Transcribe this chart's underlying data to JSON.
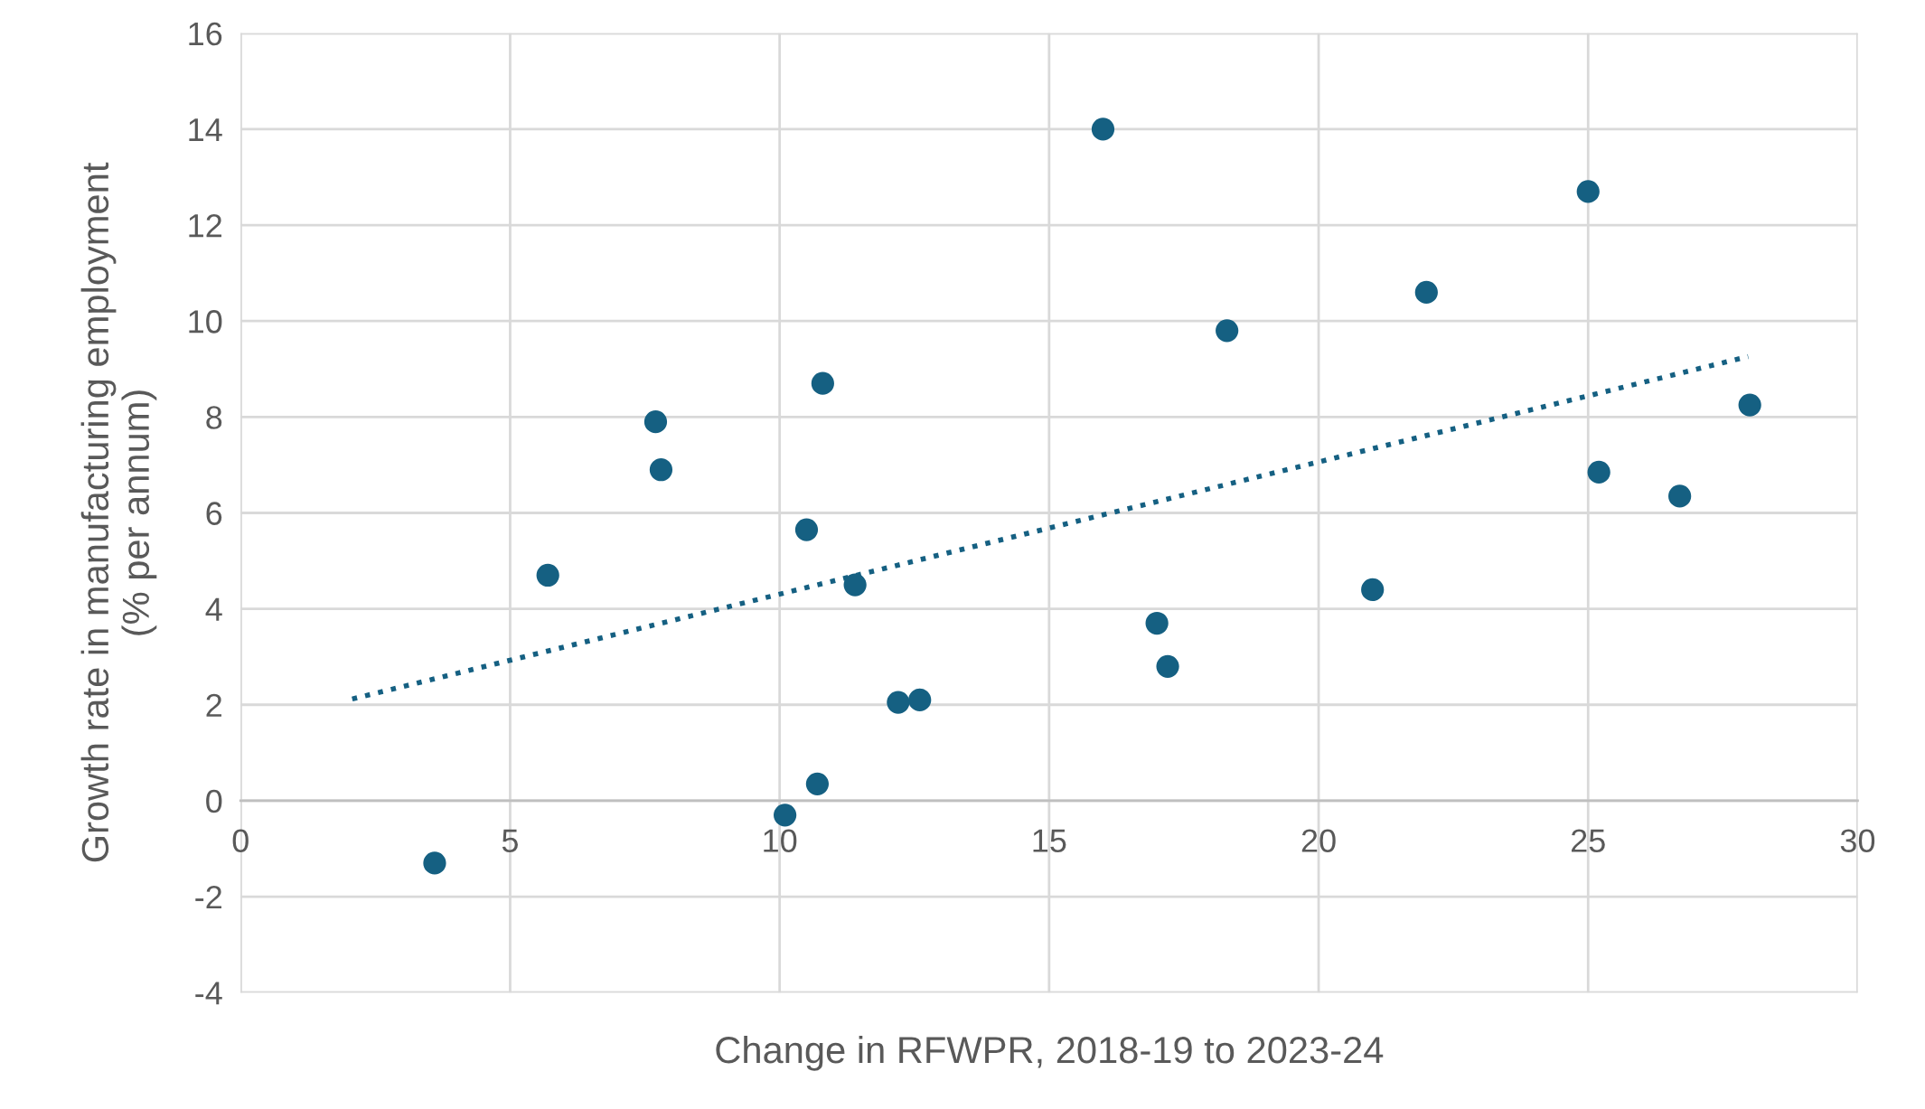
{
  "chart_data": {
    "type": "scatter",
    "xlabel": "Change in RFWPR, 2018-19 to 2023-24",
    "ylabel": "Growth rate in manufacturing employment\n(% per annum)",
    "xlim": [
      0,
      30
    ],
    "xticks": [
      0,
      5,
      10,
      15,
      20,
      25,
      30
    ],
    "ylim": [
      -4,
      16
    ],
    "yticks": [
      -4,
      -2,
      0,
      2,
      4,
      6,
      8,
      10,
      12,
      14,
      16
    ],
    "grid": true,
    "marker": "circle",
    "legend": false,
    "series": [
      {
        "color": "#156082",
        "x": [
          3.6,
          5.7,
          7.7,
          7.8,
          10.1,
          10.5,
          10.7,
          10.8,
          11.4,
          12.2,
          12.6,
          16.0,
          17.0,
          17.2,
          18.3,
          21.0,
          22.0,
          25.0,
          25.2,
          26.7,
          28.0
        ],
        "values": [
          -1.3,
          4.7,
          7.9,
          6.9,
          -0.3,
          5.65,
          0.35,
          8.7,
          4.5,
          2.05,
          2.1,
          14.0,
          3.7,
          2.8,
          9.8,
          4.4,
          10.6,
          12.7,
          6.85,
          6.35,
          8.25
        ]
      },
      {
        "type": "line",
        "color": "#156082",
        "line_style": "dotted",
        "marker": "none",
        "x": [
          2.07,
          27.97
        ],
        "values": [
          2.12,
          9.26
        ]
      }
    ]
  }
}
